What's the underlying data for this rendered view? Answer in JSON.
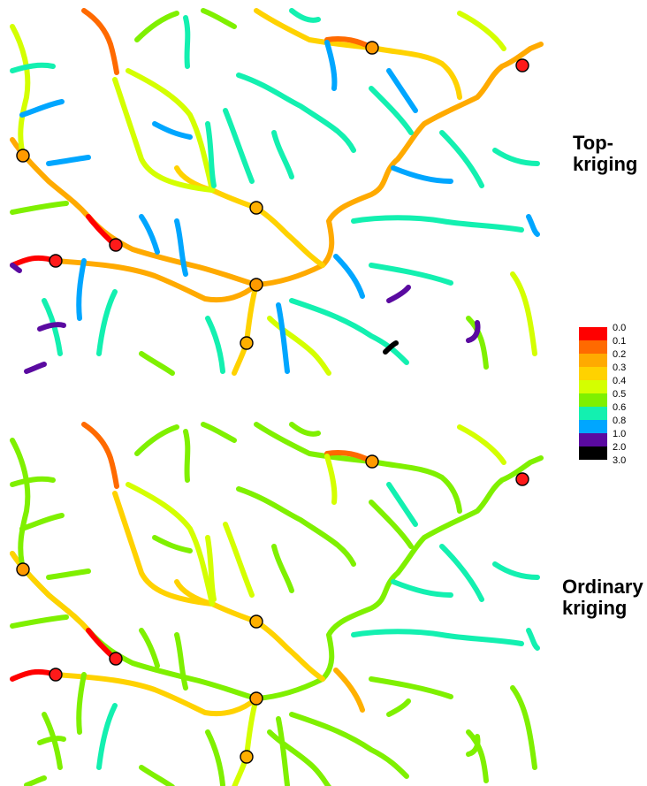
{
  "panels": [
    {
      "label": "Top-\nkriging"
    },
    {
      "label": "Ordinary\nkriging"
    }
  ],
  "legend": {
    "ticks": [
      "0.0",
      "0.1",
      "0.2",
      "0.3",
      "0.4",
      "0.5",
      "0.6",
      "0.8",
      "1.0",
      "2.0",
      "3.0"
    ],
    "colors": [
      "#ff0000",
      "#ff6a00",
      "#ffaa00",
      "#ffd200",
      "#d4ff00",
      "#7ff000",
      "#13f0b0",
      "#00a6ff",
      "#5a0aa0",
      "#000000"
    ]
  },
  "gauges": [
    {
      "color": "#ff9a00"
    },
    {
      "color": "#ff1a1a"
    },
    {
      "color": "#ff9a00"
    },
    {
      "color": "#ffb000"
    },
    {
      "color": "#ff1a1a"
    },
    {
      "color": "#ff1a1a"
    },
    {
      "color": "#ff9a00"
    },
    {
      "color": "#ffb000"
    }
  ]
}
